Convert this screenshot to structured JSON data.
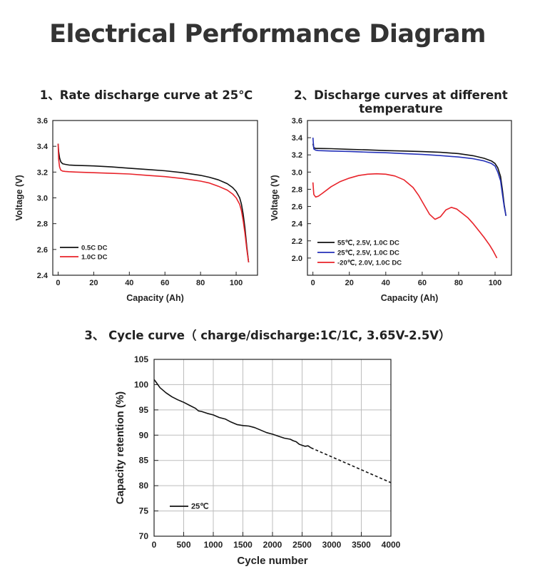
{
  "header": {
    "title": "Electrical Performance Diagram"
  },
  "chart_data": [
    {
      "type": "line",
      "title": "1、Rate discharge curve at 25℃",
      "xlabel": "Capacity (Ah)",
      "ylabel": "Voltage (V)",
      "xlim": [
        -3,
        112
      ],
      "ylim": [
        2.4,
        3.6
      ],
      "xticks": [
        0,
        20,
        40,
        60,
        80,
        100
      ],
      "yticks": [
        2.4,
        2.6,
        2.8,
        3.0,
        3.2,
        3.4,
        3.6
      ],
      "ytick_labels": [
        "2.4",
        "2.6",
        "2.8",
        "3.0",
        "3.2",
        "3.4",
        "3.6"
      ],
      "grid": false,
      "legend_position": "bottom-left",
      "series": [
        {
          "name": "0.5C DC",
          "color": "#111111",
          "x": [
            0,
            0.3,
            0.8,
            1.5,
            2.5,
            4,
            6,
            10,
            20,
            30,
            40,
            50,
            60,
            70,
            80,
            85,
            90,
            95,
            98,
            100,
            102,
            103,
            104,
            105,
            106,
            107
          ],
          "y": [
            3.42,
            3.36,
            3.31,
            3.28,
            3.265,
            3.26,
            3.255,
            3.252,
            3.248,
            3.24,
            3.23,
            3.22,
            3.21,
            3.195,
            3.175,
            3.16,
            3.14,
            3.11,
            3.08,
            3.05,
            3.0,
            2.95,
            2.87,
            2.76,
            2.62,
            2.5
          ]
        },
        {
          "name": "1.0C DC",
          "color": "#e8232a",
          "x": [
            0,
            0.3,
            0.8,
            1.5,
            2.5,
            4,
            6,
            10,
            20,
            30,
            40,
            50,
            60,
            70,
            80,
            85,
            90,
            95,
            98,
            100,
            102,
            103,
            104,
            105,
            106,
            107
          ],
          "y": [
            3.42,
            3.3,
            3.24,
            3.215,
            3.208,
            3.205,
            3.203,
            3.2,
            3.195,
            3.19,
            3.185,
            3.175,
            3.165,
            3.15,
            3.13,
            3.115,
            3.09,
            3.06,
            3.03,
            3.0,
            2.95,
            2.9,
            2.82,
            2.72,
            2.6,
            2.5
          ]
        }
      ]
    },
    {
      "type": "line",
      "title": "2、Discharge curves at different temperature",
      "title_lines": [
        "2、Discharge curves at different",
        "temperature"
      ],
      "xlabel": "Capacity (Ah)",
      "ylabel": "Voltage (V)",
      "xlim": [
        -3,
        109
      ],
      "ylim": [
        1.8,
        3.6
      ],
      "xticks": [
        0,
        20,
        40,
        60,
        80,
        100
      ],
      "yticks": [
        1.8,
        2.0,
        2.2,
        2.4,
        2.6,
        2.8,
        3.0,
        3.2,
        3.4,
        3.6
      ],
      "ytick_labels": [
        "",
        "2.0",
        "2.2",
        "2.4",
        "2.6",
        "2.8",
        "3.0",
        "3.2",
        "3.4",
        "3.6"
      ],
      "grid": false,
      "legend_position": "bottom-left",
      "series": [
        {
          "name": "55℃, 2.5V, 1.0C DC",
          "color": "#111111",
          "x": [
            0,
            0.5,
            1.5,
            3,
            6,
            10,
            20,
            30,
            40,
            50,
            60,
            70,
            80,
            88,
            94,
            98,
            100,
            101.5,
            103,
            104,
            105,
            106
          ],
          "y": [
            3.33,
            3.285,
            3.275,
            3.275,
            3.274,
            3.272,
            3.265,
            3.258,
            3.25,
            3.245,
            3.238,
            3.23,
            3.215,
            3.19,
            3.16,
            3.13,
            3.1,
            3.05,
            2.95,
            2.8,
            2.62,
            2.49
          ]
        },
        {
          "name": "25℃, 2.5V, 1.0C DC",
          "color": "#2431b8",
          "x": [
            0,
            0.5,
            1.5,
            3,
            6,
            10,
            20,
            30,
            40,
            50,
            60,
            70,
            80,
            88,
            94,
            98,
            100,
            101.5,
            103,
            104,
            105,
            106
          ],
          "y": [
            3.4,
            3.27,
            3.255,
            3.25,
            3.248,
            3.245,
            3.24,
            3.232,
            3.225,
            3.215,
            3.205,
            3.192,
            3.175,
            3.155,
            3.13,
            3.1,
            3.07,
            3.0,
            2.9,
            2.75,
            2.6,
            2.49
          ]
        },
        {
          "name": "-20℃, 2.0V, 1.0C DC",
          "color": "#e8232a",
          "x": [
            0,
            0.5,
            1.5,
            3,
            5,
            10,
            15,
            20,
            25,
            30,
            35,
            40,
            45,
            50,
            55,
            58,
            61,
            64,
            67,
            70,
            73,
            76,
            79,
            82,
            85,
            88,
            91,
            94,
            97,
            99,
            101
          ],
          "y": [
            2.88,
            2.74,
            2.71,
            2.72,
            2.75,
            2.83,
            2.89,
            2.93,
            2.96,
            2.975,
            2.98,
            2.975,
            2.955,
            2.91,
            2.82,
            2.73,
            2.62,
            2.51,
            2.45,
            2.48,
            2.56,
            2.59,
            2.57,
            2.52,
            2.47,
            2.4,
            2.32,
            2.24,
            2.15,
            2.08,
            2.0
          ]
        }
      ]
    },
    {
      "type": "line",
      "title": "3、 Cycle curve（ charge/discharge:1C/1C, 3.65V-2.5V）",
      "xlabel": "Cycle number",
      "ylabel": "Capacity retention (%)",
      "xlim": [
        0,
        4000
      ],
      "ylim": [
        70,
        105
      ],
      "xticks": [
        0,
        500,
        1000,
        1500,
        2000,
        2500,
        3000,
        3500,
        4000
      ],
      "yticks": [
        70,
        75,
        80,
        85,
        90,
        95,
        100,
        105
      ],
      "ytick_labels": [
        "70",
        "75",
        "80",
        "85",
        "90",
        "95",
        "100",
        "105"
      ],
      "grid": true,
      "legend_position": "bottom-left",
      "series": [
        {
          "name": "25℃",
          "color": "#111111",
          "style": "solid",
          "x": [
            0,
            20,
            50,
            100,
            150,
            200,
            300,
            400,
            500,
            600,
            700,
            750,
            800,
            900,
            1000,
            1100,
            1200,
            1300,
            1400,
            1500,
            1600,
            1700,
            1800,
            1900,
            2000,
            2100,
            2200,
            2300,
            2350,
            2400,
            2450,
            2500,
            2550,
            2600,
            2650
          ],
          "y": [
            101.0,
            100.7,
            100.2,
            99.4,
            98.9,
            98.4,
            97.6,
            97.0,
            96.5,
            95.9,
            95.3,
            94.8,
            94.7,
            94.3,
            94.0,
            93.5,
            93.2,
            92.6,
            92.1,
            91.9,
            91.8,
            91.5,
            91.0,
            90.5,
            90.2,
            89.8,
            89.4,
            89.2,
            88.9,
            88.7,
            88.2,
            88.0,
            87.8,
            87.9,
            87.5
          ]
        },
        {
          "name": "",
          "color": "#111111",
          "style": "dashed",
          "x": [
            2650,
            4000
          ],
          "y": [
            87.5,
            80.6
          ]
        }
      ]
    }
  ]
}
